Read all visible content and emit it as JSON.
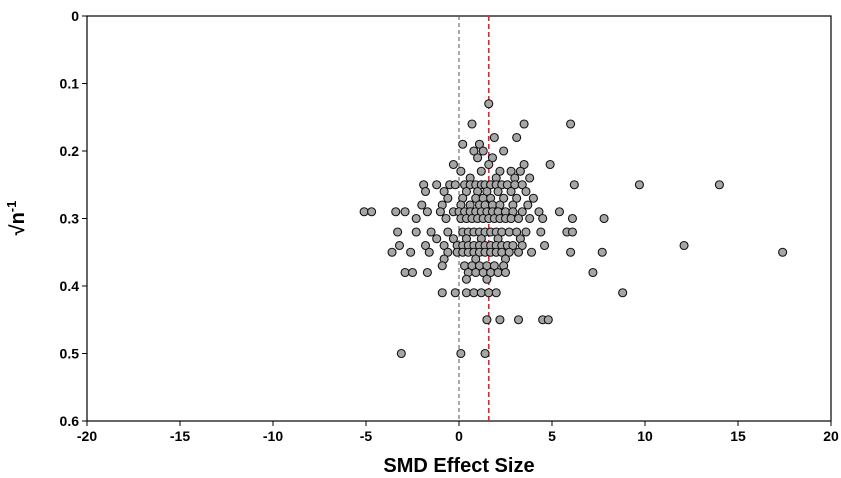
{
  "chart_data": {
    "type": "scatter",
    "title": "",
    "xlabel": "SMD Effect Size",
    "ylabel_base": "√n",
    "ylabel_exp": "-1",
    "xlim": [
      -20,
      20
    ],
    "ylim": [
      0,
      0.6
    ],
    "y_inverted": true,
    "grid": false,
    "legend": "none",
    "xticks": [
      -20,
      -15,
      -10,
      -5,
      0,
      5,
      10,
      15,
      20
    ],
    "xtick_labels": [
      "-20",
      "-15",
      "-10",
      "-5",
      "0",
      "5",
      "10",
      "15",
      "20"
    ],
    "yticks": [
      0,
      0.1,
      0.2,
      0.3,
      0.4,
      0.5,
      0.6
    ],
    "ytick_labels": [
      "0",
      "0.1",
      "0.2",
      "0.3",
      "0.4",
      "0.5",
      "0.6"
    ],
    "reference_lines": [
      {
        "x": 0,
        "color": "#555555",
        "style": "dashed"
      },
      {
        "x": 1.6,
        "color": "#e8202a",
        "style": "dashed"
      }
    ],
    "marker_color": "#a6a6a6",
    "marker_edge": "#111111",
    "points": [
      [
        1.6,
        0.13
      ],
      [
        0.7,
        0.16
      ],
      [
        3.5,
        0.16
      ],
      [
        6,
        0.16
      ],
      [
        1.9,
        0.18
      ],
      [
        3.1,
        0.18
      ],
      [
        0.2,
        0.19
      ],
      [
        1.1,
        0.19
      ],
      [
        0.8,
        0.2
      ],
      [
        1.3,
        0.2
      ],
      [
        2.4,
        0.2
      ],
      [
        1,
        0.21
      ],
      [
        1.8,
        0.21
      ],
      [
        -0.3,
        0.22
      ],
      [
        1.6,
        0.22
      ],
      [
        3.5,
        0.22
      ],
      [
        4.9,
        0.22
      ],
      [
        0.1,
        0.23
      ],
      [
        1.2,
        0.23
      ],
      [
        2.2,
        0.23
      ],
      [
        2.8,
        0.23
      ],
      [
        3.3,
        0.23
      ],
      [
        0.6,
        0.24
      ],
      [
        2,
        0.24
      ],
      [
        3,
        0.24
      ],
      [
        3.8,
        0.24
      ],
      [
        -1.9,
        0.25
      ],
      [
        -1.2,
        0.25
      ],
      [
        -0.5,
        0.25
      ],
      [
        -0.2,
        0.25
      ],
      [
        0.3,
        0.25
      ],
      [
        0.6,
        0.25
      ],
      [
        0.9,
        0.25
      ],
      [
        1.2,
        0.25
      ],
      [
        1.4,
        0.25
      ],
      [
        1.7,
        0.25
      ],
      [
        2,
        0.25
      ],
      [
        2.3,
        0.25
      ],
      [
        2.6,
        0.25
      ],
      [
        3,
        0.25
      ],
      [
        3.4,
        0.25
      ],
      [
        6.2,
        0.25
      ],
      [
        9.7,
        0.25
      ],
      [
        14,
        0.25
      ],
      [
        -1.8,
        0.26
      ],
      [
        -0.8,
        0.26
      ],
      [
        0.4,
        0.26
      ],
      [
        1,
        0.26
      ],
      [
        1.5,
        0.26
      ],
      [
        2.1,
        0.26
      ],
      [
        2.8,
        0.26
      ],
      [
        3.6,
        0.26
      ],
      [
        -0.6,
        0.27
      ],
      [
        0.2,
        0.27
      ],
      [
        0.9,
        0.27
      ],
      [
        1.3,
        0.27
      ],
      [
        1.7,
        0.27
      ],
      [
        2.4,
        0.27
      ],
      [
        3.1,
        0.27
      ],
      [
        4,
        0.27
      ],
      [
        -2,
        0.28
      ],
      [
        -0.9,
        0.28
      ],
      [
        0.1,
        0.28
      ],
      [
        0.6,
        0.28
      ],
      [
        1.1,
        0.28
      ],
      [
        1.4,
        0.28
      ],
      [
        1.8,
        0.28
      ],
      [
        2.2,
        0.28
      ],
      [
        2.9,
        0.28
      ],
      [
        3.7,
        0.28
      ],
      [
        -5.1,
        0.29
      ],
      [
        -4.7,
        0.29
      ],
      [
        -3.4,
        0.29
      ],
      [
        -2.9,
        0.29
      ],
      [
        -1.7,
        0.29
      ],
      [
        -1,
        0.29
      ],
      [
        -0.3,
        0.29
      ],
      [
        0,
        0.29
      ],
      [
        0.3,
        0.29
      ],
      [
        0.6,
        0.29
      ],
      [
        0.9,
        0.29
      ],
      [
        1.2,
        0.29
      ],
      [
        1.5,
        0.29
      ],
      [
        1.8,
        0.29
      ],
      [
        2.1,
        0.29
      ],
      [
        2.5,
        0.29
      ],
      [
        2.9,
        0.29
      ],
      [
        3.4,
        0.29
      ],
      [
        4.3,
        0.29
      ],
      [
        5.4,
        0.29
      ],
      [
        -2.3,
        0.3
      ],
      [
        -0.7,
        0.3
      ],
      [
        0.1,
        0.3
      ],
      [
        0.4,
        0.3
      ],
      [
        0.7,
        0.3
      ],
      [
        1,
        0.3
      ],
      [
        1.3,
        0.3
      ],
      [
        1.6,
        0.3
      ],
      [
        1.9,
        0.3
      ],
      [
        2.2,
        0.3
      ],
      [
        2.5,
        0.3
      ],
      [
        2.8,
        0.3
      ],
      [
        3.2,
        0.3
      ],
      [
        3.8,
        0.3
      ],
      [
        4.5,
        0.3
      ],
      [
        6.1,
        0.3
      ],
      [
        7.8,
        0.3
      ],
      [
        -3.3,
        0.32
      ],
      [
        -2.3,
        0.32
      ],
      [
        -1.5,
        0.32
      ],
      [
        -0.6,
        0.32
      ],
      [
        0.2,
        0.32
      ],
      [
        0.5,
        0.32
      ],
      [
        0.8,
        0.32
      ],
      [
        1.1,
        0.32
      ],
      [
        1.4,
        0.32
      ],
      [
        1.7,
        0.32
      ],
      [
        2,
        0.32
      ],
      [
        2.3,
        0.32
      ],
      [
        2.7,
        0.32
      ],
      [
        3.1,
        0.32
      ],
      [
        3.6,
        0.32
      ],
      [
        4.4,
        0.32
      ],
      [
        5.8,
        0.32
      ],
      [
        6.1,
        0.32
      ],
      [
        -1.2,
        0.33
      ],
      [
        -0.3,
        0.33
      ],
      [
        0.4,
        0.33
      ],
      [
        1.2,
        0.33
      ],
      [
        2.1,
        0.33
      ],
      [
        3.3,
        0.33
      ],
      [
        -3.2,
        0.34
      ],
      [
        -1.8,
        0.34
      ],
      [
        -0.8,
        0.34
      ],
      [
        -0.1,
        0.34
      ],
      [
        0.2,
        0.34
      ],
      [
        0.5,
        0.34
      ],
      [
        0.8,
        0.34
      ],
      [
        1.1,
        0.34
      ],
      [
        1.4,
        0.34
      ],
      [
        1.7,
        0.34
      ],
      [
        2,
        0.34
      ],
      [
        2.3,
        0.34
      ],
      [
        2.6,
        0.34
      ],
      [
        2.9,
        0.34
      ],
      [
        3.4,
        0.34
      ],
      [
        4.6,
        0.34
      ],
      [
        12.1,
        0.34
      ],
      [
        -3.6,
        0.35
      ],
      [
        -2.6,
        0.35
      ],
      [
        -1.6,
        0.35
      ],
      [
        -0.6,
        0.35
      ],
      [
        -0.1,
        0.35
      ],
      [
        0.2,
        0.35
      ],
      [
        0.5,
        0.35
      ],
      [
        0.8,
        0.35
      ],
      [
        1.1,
        0.35
      ],
      [
        1.4,
        0.35
      ],
      [
        1.7,
        0.35
      ],
      [
        2,
        0.35
      ],
      [
        2.3,
        0.35
      ],
      [
        2.7,
        0.35
      ],
      [
        3.2,
        0.35
      ],
      [
        3.9,
        0.35
      ],
      [
        6,
        0.35
      ],
      [
        7.7,
        0.35
      ],
      [
        17.4,
        0.35
      ],
      [
        -0.8,
        0.36
      ],
      [
        0.9,
        0.36
      ],
      [
        2.5,
        0.36
      ],
      [
        -0.9,
        0.37
      ],
      [
        0.3,
        0.37
      ],
      [
        0.7,
        0.37
      ],
      [
        1.1,
        0.37
      ],
      [
        1.5,
        0.37
      ],
      [
        1.9,
        0.37
      ],
      [
        2.4,
        0.37
      ],
      [
        -2.9,
        0.38
      ],
      [
        -2.5,
        0.38
      ],
      [
        -1.7,
        0.38
      ],
      [
        0.5,
        0.38
      ],
      [
        0.9,
        0.38
      ],
      [
        1.3,
        0.38
      ],
      [
        1.7,
        0.38
      ],
      [
        2.1,
        0.38
      ],
      [
        2.5,
        0.38
      ],
      [
        7.2,
        0.38
      ],
      [
        0.4,
        0.39
      ],
      [
        1.5,
        0.39
      ],
      [
        -0.9,
        0.41
      ],
      [
        -0.2,
        0.41
      ],
      [
        0.4,
        0.41
      ],
      [
        0.8,
        0.41
      ],
      [
        1.2,
        0.41
      ],
      [
        1.6,
        0.41
      ],
      [
        2,
        0.41
      ],
      [
        8.8,
        0.41
      ],
      [
        1.5,
        0.45
      ],
      [
        2.2,
        0.45
      ],
      [
        3.2,
        0.45
      ],
      [
        4.5,
        0.45
      ],
      [
        4.8,
        0.45
      ],
      [
        -3.1,
        0.5
      ],
      [
        0.1,
        0.5
      ],
      [
        1.4,
        0.5
      ]
    ]
  }
}
